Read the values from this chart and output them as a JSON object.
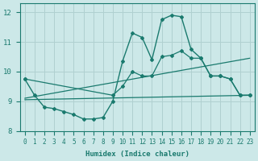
{
  "xlabel": "Humidex (Indice chaleur)",
  "xlim": [
    -0.5,
    23.5
  ],
  "ylim": [
    8,
    12.3
  ],
  "yticks": [
    8,
    9,
    10,
    11,
    12
  ],
  "xticks": [
    0,
    1,
    2,
    3,
    4,
    5,
    6,
    7,
    8,
    9,
    10,
    11,
    12,
    13,
    14,
    15,
    16,
    17,
    18,
    19,
    20,
    21,
    22,
    23
  ],
  "bg_color": "#cce8e8",
  "grid_color": "#b0d0d0",
  "line_color": "#1a7a6e",
  "lines": [
    {
      "x": [
        0,
        1,
        2,
        3,
        4,
        5,
        6,
        7,
        8,
        9,
        10,
        11,
        12,
        13,
        14,
        15,
        16,
        17,
        18,
        19,
        20,
        21,
        22,
        23
      ],
      "y": [
        9.75,
        9.2,
        8.8,
        8.75,
        8.65,
        8.55,
        8.4,
        8.4,
        8.45,
        9.0,
        10.35,
        11.3,
        11.15,
        10.4,
        11.75,
        11.9,
        11.85,
        10.75,
        10.45,
        9.85,
        9.85,
        9.75,
        9.2,
        9.2
      ],
      "marker": "D",
      "markersize": 2.0,
      "linewidth": 1.0,
      "linestyle": "-"
    },
    {
      "x": [
        0,
        23
      ],
      "y": [
        9.05,
        9.2
      ],
      "marker": null,
      "markersize": 0,
      "linewidth": 0.9,
      "linestyle": "-"
    },
    {
      "x": [
        0,
        23
      ],
      "y": [
        9.1,
        10.45
      ],
      "marker": null,
      "markersize": 0,
      "linewidth": 0.9,
      "linestyle": "-"
    },
    {
      "x": [
        0,
        9,
        10,
        11,
        12,
        13,
        14,
        15,
        16,
        17,
        18,
        19,
        20,
        21,
        22,
        23
      ],
      "y": [
        9.75,
        9.2,
        9.5,
        10.0,
        9.85,
        9.85,
        10.5,
        10.55,
        10.7,
        10.45,
        10.45,
        9.85,
        9.85,
        9.75,
        9.2,
        9.2
      ],
      "marker": "D",
      "markersize": 2.0,
      "linewidth": 0.9,
      "linestyle": "-"
    }
  ]
}
